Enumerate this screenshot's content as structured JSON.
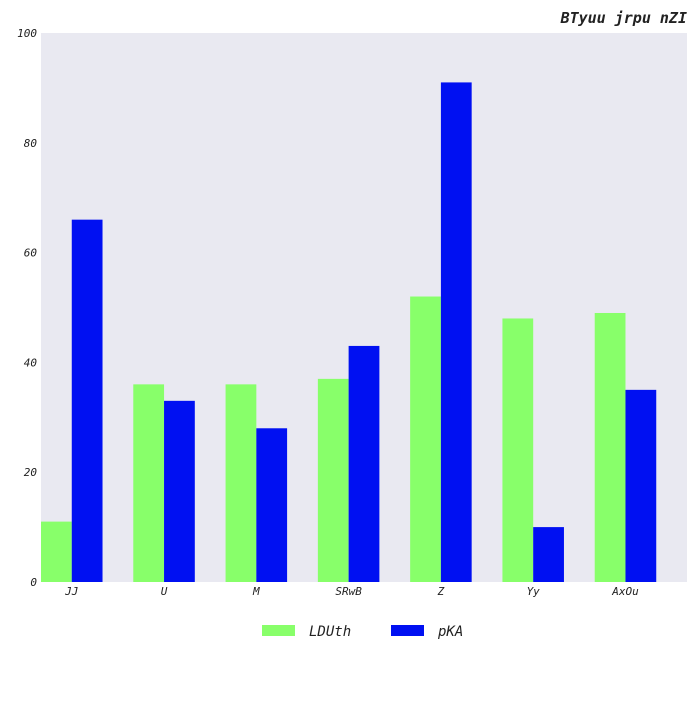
{
  "chart_data": {
    "type": "bar",
    "title": "BTyuu jrpu nZI",
    "xlabel": "",
    "ylabel": "",
    "categories": [
      "JJ",
      "U",
      "M",
      "SRwB",
      "Z",
      "Yy",
      "AxOu"
    ],
    "series": [
      {
        "name": "LDUth",
        "color": "#88ff6a",
        "values": [
          11,
          36,
          36,
          37,
          52,
          48,
          49
        ]
      },
      {
        "name": "pKA",
        "color": "#0010f2",
        "values": [
          66,
          33,
          28,
          43,
          91,
          10,
          35
        ]
      }
    ],
    "ylim": [
      0,
      100
    ],
    "yticks": [
      0,
      20,
      40,
      60,
      80,
      100
    ],
    "grid": false,
    "legend_position": "bottom-center",
    "plot_background": "#e9e9f1"
  }
}
